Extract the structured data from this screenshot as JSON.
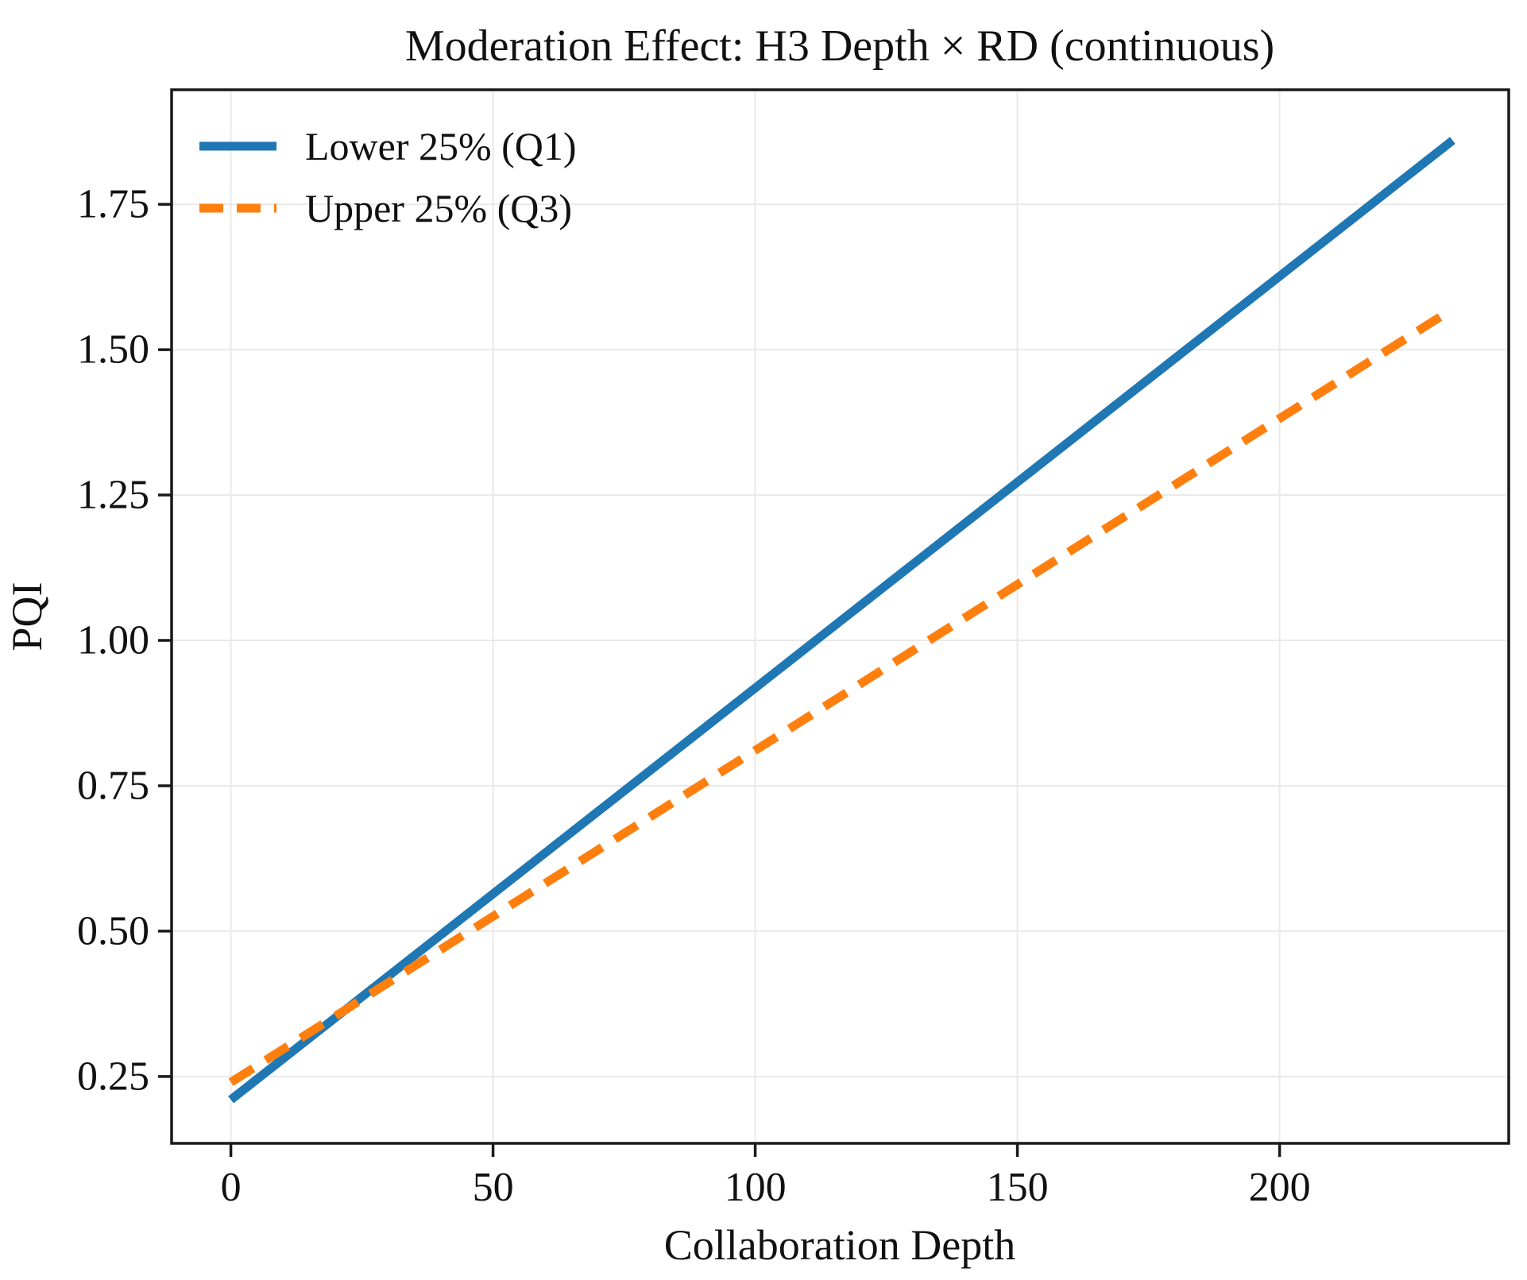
{
  "chart_data": {
    "type": "line",
    "title": "Moderation Effect: H3 Depth × RD (continuous)",
    "xlabel": "Collaboration Depth",
    "ylabel": "PQI",
    "xlim": [
      -11.3,
      243.7
    ],
    "ylim": [
      0.135,
      1.947
    ],
    "grid": true,
    "grid_color": "#e9e9e9",
    "axis_color": "#1a1a1a",
    "legend_position": "upper left",
    "x_ticks": {
      "values": [
        0,
        50,
        100,
        150,
        200
      ],
      "labels": [
        "0",
        "50",
        "100",
        "150",
        "200"
      ]
    },
    "y_ticks": {
      "values": [
        0.25,
        0.5,
        0.75,
        1.0,
        1.25,
        1.5,
        1.75
      ],
      "labels": [
        "0.25",
        "0.50",
        "0.75",
        "1.00",
        "1.25",
        "1.50",
        "1.75"
      ]
    },
    "series": [
      {
        "name": "Lower 25% (Q1)",
        "color": "#1f77b4",
        "style": "solid",
        "x": [
          0,
          233
        ],
        "y": [
          0.21,
          1.86
        ]
      },
      {
        "name": "Upper 25% (Q3)",
        "color": "#ff7f0e",
        "style": "dashed",
        "dash": [
          33,
          19
        ],
        "x": [
          0,
          233
        ],
        "y": [
          0.24,
          1.57
        ]
      }
    ]
  }
}
